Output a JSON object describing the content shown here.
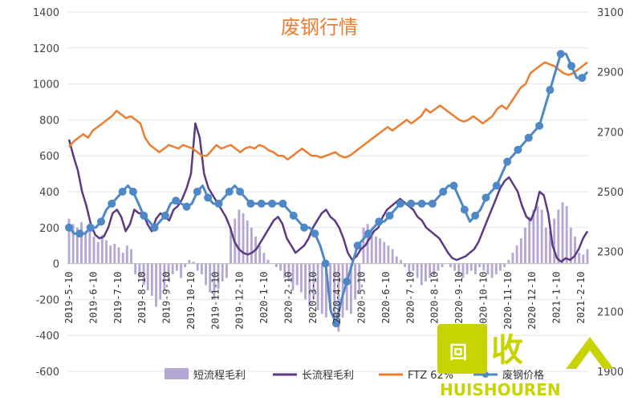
{
  "chart_data": {
    "type": "combo",
    "title": "废钢行情",
    "left_axis": {
      "min": -600,
      "max": 1400,
      "ticks": [
        1400,
        1200,
        1000,
        800,
        600,
        400,
        200,
        0,
        -200,
        -400,
        -600
      ]
    },
    "right_axis": {
      "min": 1900,
      "max": 3100,
      "ticks": [
        3100,
        2900,
        2700,
        2500,
        2300,
        2100,
        1900
      ]
    },
    "x_labels": [
      "2019-5-10",
      "2019-6-10",
      "2019-7-10",
      "2019-8-10",
      "2019-9-10",
      "2019-10-10",
      "2019-11-10",
      "2019-12-10",
      "2020-1-10",
      "2020-2-10",
      "2020-3-10",
      "2020-4-10",
      "2020-5-10",
      "2020-6-10",
      "2020-7-10",
      "2020-8-10",
      "2020-9-10",
      "2020-10-10",
      "2020-11-10",
      "2020-12-10",
      "2021-1-10",
      "2021-2-10"
    ],
    "legend": {
      "placement": "bottom"
    },
    "series": [
      {
        "name": "短流程毛利",
        "kind": "bar",
        "axis": "left",
        "color": "#b4a7d6",
        "values": [
          250,
          220,
          200,
          230,
          180,
          200,
          150,
          120,
          160,
          130,
          100,
          110,
          90,
          60,
          100,
          80,
          -60,
          -80,
          -120,
          -150,
          -180,
          -240,
          -200,
          -150,
          -100,
          -60,
          -40,
          -80,
          -20,
          20,
          10,
          -40,
          -60,
          -120,
          -160,
          -200,
          -140,
          -100,
          -80,
          200,
          250,
          300,
          280,
          240,
          200,
          150,
          100,
          60,
          20,
          0,
          -20,
          -40,
          -80,
          -100,
          -150,
          -120,
          -160,
          -200,
          -240,
          -200,
          -260,
          -280,
          -300,
          -260,
          -350,
          -380,
          -300,
          -260,
          -280,
          -200,
          -160,
          200,
          220,
          180,
          150,
          140,
          120,
          100,
          80,
          40,
          20,
          -20,
          -60,
          -40,
          -80,
          -120,
          -100,
          -80,
          -60,
          -40,
          -20,
          0,
          -20,
          -40,
          -60,
          -80,
          -60,
          -40,
          -60,
          -20,
          -40,
          -60,
          -80,
          -60,
          -40,
          -20,
          20,
          60,
          100,
          140,
          200,
          260,
          300,
          320,
          300,
          200,
          180,
          250,
          300,
          340,
          320,
          200,
          150,
          60,
          50,
          80
        ]
      },
      {
        "name": "长流程毛利",
        "kind": "line",
        "axis": "left",
        "color": "#5b3a82",
        "values": [
          690,
          600,
          520,
          400,
          320,
          220,
          160,
          140,
          150,
          200,
          280,
          300,
          260,
          180,
          220,
          300,
          280,
          280,
          220,
          180,
          250,
          280,
          260,
          240,
          300,
          320,
          360,
          420,
          500,
          780,
          700,
          500,
          420,
          380,
          340,
          300,
          260,
          200,
          120,
          80,
          60,
          50,
          60,
          80,
          120,
          160,
          200,
          240,
          260,
          220,
          140,
          100,
          60,
          80,
          100,
          140,
          200,
          240,
          280,
          300,
          260,
          240,
          200,
          140,
          60,
          20,
          40,
          80,
          100,
          140,
          180,
          200,
          260,
          300,
          320,
          340,
          360,
          340,
          320,
          300,
          260,
          240,
          200,
          180,
          160,
          140,
          100,
          60,
          30,
          20,
          30,
          40,
          60,
          80,
          120,
          180,
          240,
          300,
          360,
          420,
          460,
          480,
          440,
          400,
          320,
          260,
          240,
          300,
          400,
          380,
          280,
          100,
          30,
          10,
          30,
          20,
          40,
          80,
          140,
          180
        ]
      },
      {
        "name": "FTZ 62%",
        "kind": "line",
        "axis": "left",
        "color": "#ed7d31",
        "values": [
          650,
          680,
          700,
          720,
          700,
          740,
          760,
          780,
          800,
          820,
          850,
          830,
          810,
          820,
          800,
          780,
          700,
          660,
          640,
          620,
          640,
          660,
          650,
          640,
          660,
          650,
          640,
          620,
          600,
          600,
          630,
          660,
          640,
          650,
          660,
          640,
          620,
          640,
          650,
          640,
          660,
          650,
          630,
          620,
          600,
          600,
          580,
          600,
          620,
          640,
          620,
          600,
          600,
          590,
          600,
          610,
          620,
          600,
          590,
          600,
          620,
          640,
          660,
          680,
          700,
          720,
          740,
          760,
          740,
          760,
          780,
          800,
          780,
          800,
          820,
          860,
          840,
          860,
          880,
          860,
          840,
          820,
          800,
          790,
          800,
          820,
          800,
          780,
          800,
          820,
          860,
          880,
          860,
          900,
          940,
          980,
          1000,
          1060,
          1080,
          1100,
          1120,
          1110,
          1100,
          1080,
          1060,
          1050,
          1060,
          1080,
          1100,
          1120
        ]
      },
      {
        "name": "废钢价格",
        "kind": "line",
        "axis": "right",
        "color": "#4f88c6",
        "values": [
          2380,
          2360,
          2360,
          2360,
          2380,
          2380,
          2400,
          2440,
          2460,
          2480,
          2500,
          2520,
          2500,
          2460,
          2420,
          2400,
          2380,
          2400,
          2420,
          2460,
          2470,
          2460,
          2450,
          2460,
          2500,
          2520,
          2480,
          2460,
          2460,
          2480,
          2500,
          2520,
          2500,
          2480,
          2460,
          2460,
          2460,
          2460,
          2460,
          2460,
          2460,
          2440,
          2420,
          2400,
          2380,
          2380,
          2360,
          2320,
          2260,
          2100,
          2060,
          2140,
          2200,
          2260,
          2320,
          2340,
          2360,
          2380,
          2400,
          2400,
          2420,
          2440,
          2460,
          2460,
          2460,
          2460,
          2460,
          2460,
          2460,
          2480,
          2500,
          2520,
          2520,
          2480,
          2440,
          2400,
          2420,
          2440,
          2480,
          2500,
          2520,
          2560,
          2600,
          2620,
          2640,
          2660,
          2680,
          2700,
          2720,
          2780,
          2840,
          2900,
          2960,
          2960,
          2920,
          2880,
          2880,
          2900
        ]
      }
    ],
    "legend_labels": [
      "短流程毛利",
      "长流程毛利",
      "FTZ 62%",
      "废钢价格"
    ]
  },
  "watermark": {
    "text": "HUISHOUREN",
    "logo_text": "回收",
    "color": "#c8d400"
  }
}
